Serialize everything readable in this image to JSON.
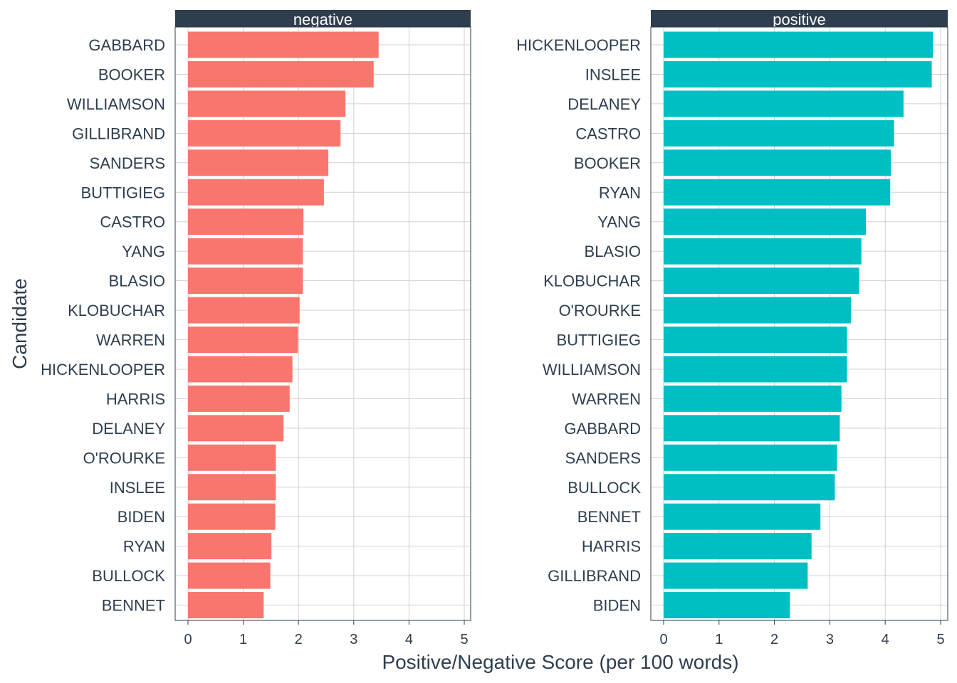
{
  "chart_data": {
    "type": "bar",
    "orientation": "horizontal",
    "xlabel": "Positive/Negative Score (per 100 words)",
    "ylabel": "Candidate",
    "xlim": [
      0,
      5
    ],
    "xticks": [
      0,
      1,
      2,
      3,
      4,
      5
    ],
    "grid": true,
    "panels": [
      {
        "name": "negative",
        "color": "#F8766D",
        "categories": [
          "GABBARD",
          "BOOKER",
          "WILLIAMSON",
          "GILLIBRAND",
          "SANDERS",
          "BUTTIGIEG",
          "CASTRO",
          "YANG",
          "BLASIO",
          "KLOBUCHAR",
          "WARREN",
          "HICKENLOOPER",
          "HARRIS",
          "DELANEY",
          "O'ROURKE",
          "INSLEE",
          "BIDEN",
          "RYAN",
          "BULLOCK",
          "BENNET"
        ],
        "values": [
          3.45,
          3.36,
          2.85,
          2.76,
          2.54,
          2.46,
          2.09,
          2.08,
          2.08,
          2.02,
          1.99,
          1.89,
          1.84,
          1.73,
          1.59,
          1.59,
          1.58,
          1.51,
          1.49,
          1.37
        ]
      },
      {
        "name": "positive",
        "color": "#00BFC4",
        "categories": [
          "HICKENLOOPER",
          "INSLEE",
          "DELANEY",
          "CASTRO",
          "BOOKER",
          "RYAN",
          "YANG",
          "BLASIO",
          "KLOBUCHAR",
          "O'ROURKE",
          "BUTTIGIEG",
          "WILLIAMSON",
          "WARREN",
          "GABBARD",
          "SANDERS",
          "BULLOCK",
          "BENNET",
          "HARRIS",
          "GILLIBRAND",
          "BIDEN"
        ],
        "values": [
          4.86,
          4.84,
          4.33,
          4.16,
          4.1,
          4.09,
          3.65,
          3.57,
          3.53,
          3.38,
          3.31,
          3.31,
          3.21,
          3.18,
          3.13,
          3.09,
          2.83,
          2.67,
          2.6,
          2.28
        ]
      }
    ]
  }
}
